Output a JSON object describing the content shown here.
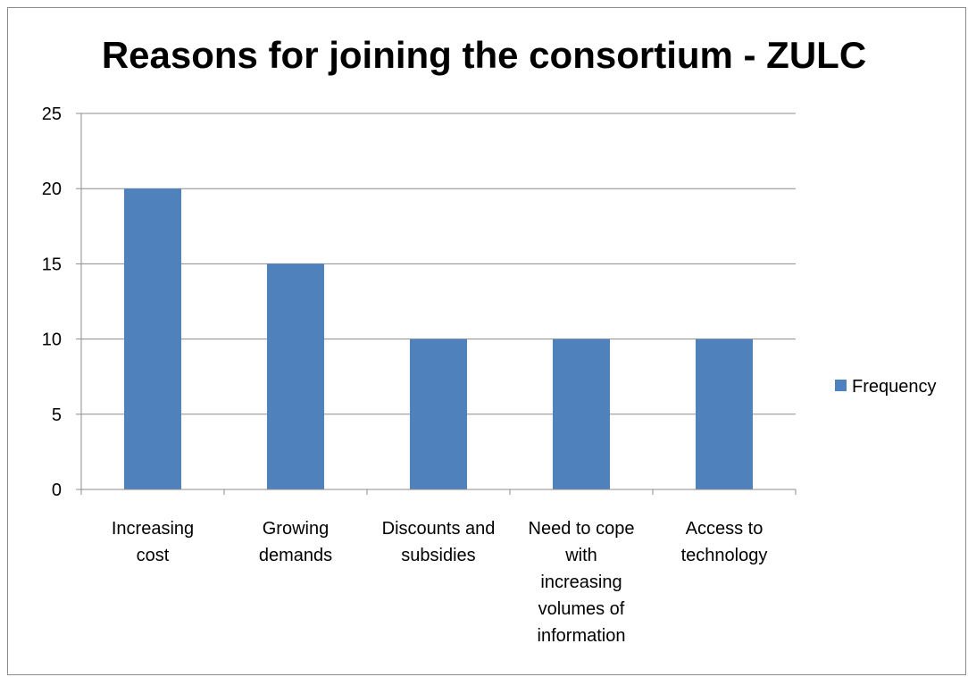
{
  "chart_data": {
    "type": "bar",
    "title": "Reasons for joining the consortium - ZULC",
    "categories": [
      [
        "Increasing",
        "cost"
      ],
      [
        "Growing",
        "demands"
      ],
      [
        "Discounts and",
        "subsidies"
      ],
      [
        "Need to cope",
        "with",
        "increasing",
        "volumes of",
        "information"
      ],
      [
        "Access to",
        "technology"
      ]
    ],
    "series": [
      {
        "name": "Frequency",
        "values": [
          20,
          15,
          10,
          10,
          10
        ],
        "color": "#4f81bd"
      }
    ],
    "xlabel": "",
    "ylabel": "",
    "ylim": [
      0,
      25
    ],
    "yticks": [
      "0",
      "5",
      "10",
      "15",
      "20",
      "25"
    ],
    "grid": true,
    "legend_position": "right"
  }
}
